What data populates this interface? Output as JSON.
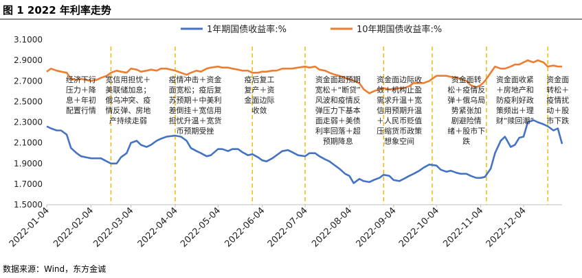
{
  "figure": {
    "title": "图 1  2022 年利率走势",
    "source": "数据来源：Wind，东方金诚"
  },
  "chart_data": {
    "type": "line",
    "title": "",
    "xlabel": "",
    "ylabel": "",
    "ylim": [
      1.5,
      3.1
    ],
    "yticks": [
      "1.5000",
      "1.7000",
      "1.9000",
      "2.1000",
      "2.3000",
      "2.5000",
      "2.7000",
      "2.9000",
      "3.1000"
    ],
    "x_range": [
      "2022-01-04",
      "2022-12-31"
    ],
    "xticks": [
      "2022-01-04",
      "2022-02-04",
      "2022-03-04",
      "2022-04-04",
      "2022-05-04",
      "2022-06-04",
      "2022-07-04",
      "2022-08-04",
      "2022-09-04",
      "2022-10-04",
      "2022-11-04",
      "2022-12-04"
    ],
    "legend_position": "top-center",
    "grid": false,
    "series": [
      {
        "name": "1年期国债收益率:%",
        "color": "#4472c4",
        "points": [
          [
            "2022-01-04",
            2.26
          ],
          [
            "2022-01-07",
            2.24
          ],
          [
            "2022-01-11",
            2.22
          ],
          [
            "2022-01-14",
            2.22
          ],
          [
            "2022-01-18",
            2.18
          ],
          [
            "2022-01-21",
            2.05
          ],
          [
            "2022-01-25",
            2.0
          ],
          [
            "2022-01-28",
            1.97
          ],
          [
            "2022-02-04",
            1.95
          ],
          [
            "2022-02-08",
            1.95
          ],
          [
            "2022-02-11",
            1.95
          ],
          [
            "2022-02-15",
            1.92
          ],
          [
            "2022-02-18",
            1.9
          ],
          [
            "2022-02-22",
            1.9
          ],
          [
            "2022-02-25",
            1.96
          ],
          [
            "2022-03-01",
            2.0
          ],
          [
            "2022-03-04",
            2.1
          ],
          [
            "2022-03-08",
            2.12
          ],
          [
            "2022-03-11",
            2.08
          ],
          [
            "2022-03-15",
            2.06
          ],
          [
            "2022-03-18",
            2.08
          ],
          [
            "2022-03-22",
            2.12
          ],
          [
            "2022-03-25",
            2.14
          ],
          [
            "2022-03-29",
            2.16
          ],
          [
            "2022-04-04",
            2.17
          ],
          [
            "2022-04-08",
            2.16
          ],
          [
            "2022-04-12",
            2.12
          ],
          [
            "2022-04-15",
            2.05
          ],
          [
            "2022-04-19",
            2.02
          ],
          [
            "2022-04-22",
            2.0
          ],
          [
            "2022-04-26",
            1.97
          ],
          [
            "2022-04-29",
            1.98
          ],
          [
            "2022-05-04",
            2.04
          ],
          [
            "2022-05-07",
            2.04
          ],
          [
            "2022-05-11",
            2.02
          ],
          [
            "2022-05-14",
            2.04
          ],
          [
            "2022-05-18",
            2.04
          ],
          [
            "2022-05-21",
            2.01
          ],
          [
            "2022-05-25",
            1.98
          ],
          [
            "2022-05-28",
            1.99
          ],
          [
            "2022-06-01",
            1.96
          ],
          [
            "2022-06-04",
            1.93
          ],
          [
            "2022-06-07",
            1.92
          ],
          [
            "2022-06-11",
            1.95
          ],
          [
            "2022-06-14",
            1.98
          ],
          [
            "2022-06-18",
            2.02
          ],
          [
            "2022-06-22",
            2.03
          ],
          [
            "2022-06-25",
            2.01
          ],
          [
            "2022-06-29",
            1.98
          ],
          [
            "2022-07-04",
            1.97
          ],
          [
            "2022-07-07",
            2.0
          ],
          [
            "2022-07-11",
            2.0
          ],
          [
            "2022-07-14",
            1.97
          ],
          [
            "2022-07-18",
            1.94
          ],
          [
            "2022-07-21",
            1.92
          ],
          [
            "2022-07-25",
            1.88
          ],
          [
            "2022-07-28",
            1.85
          ],
          [
            "2022-08-01",
            1.8
          ],
          [
            "2022-08-04",
            1.78
          ],
          [
            "2022-08-07",
            1.71
          ],
          [
            "2022-08-11",
            1.75
          ],
          [
            "2022-08-14",
            1.73
          ],
          [
            "2022-08-18",
            1.72
          ],
          [
            "2022-08-21",
            1.74
          ],
          [
            "2022-08-25",
            1.76
          ],
          [
            "2022-08-28",
            1.79
          ],
          [
            "2022-09-01",
            1.78
          ],
          [
            "2022-09-04",
            1.74
          ],
          [
            "2022-09-08",
            1.73
          ],
          [
            "2022-09-11",
            1.75
          ],
          [
            "2022-09-15",
            1.78
          ],
          [
            "2022-09-18",
            1.8
          ],
          [
            "2022-09-22",
            1.83
          ],
          [
            "2022-09-25",
            1.86
          ],
          [
            "2022-09-29",
            1.89
          ],
          [
            "2022-10-04",
            1.88
          ],
          [
            "2022-10-07",
            1.84
          ],
          [
            "2022-10-11",
            1.82
          ],
          [
            "2022-10-14",
            1.83
          ],
          [
            "2022-10-18",
            1.81
          ],
          [
            "2022-10-21",
            1.8
          ],
          [
            "2022-10-25",
            1.8
          ],
          [
            "2022-10-28",
            1.78
          ],
          [
            "2022-11-01",
            1.76
          ],
          [
            "2022-11-04",
            1.76
          ],
          [
            "2022-11-07",
            1.77
          ],
          [
            "2022-11-11",
            1.85
          ],
          [
            "2022-11-14",
            2.0
          ],
          [
            "2022-11-18",
            2.12
          ],
          [
            "2022-11-21",
            2.16
          ],
          [
            "2022-11-25",
            2.06
          ],
          [
            "2022-11-28",
            2.08
          ],
          [
            "2022-12-01",
            2.15
          ],
          [
            "2022-12-04",
            2.16
          ],
          [
            "2022-12-07",
            2.3
          ],
          [
            "2022-12-11",
            2.32
          ],
          [
            "2022-12-14",
            2.3
          ],
          [
            "2022-12-18",
            2.28
          ],
          [
            "2022-12-21",
            2.26
          ],
          [
            "2022-12-25",
            2.22
          ],
          [
            "2022-12-28",
            2.24
          ],
          [
            "2022-12-31",
            2.09
          ]
        ]
      },
      {
        "name": "10年期国债收益率:%",
        "color": "#ed7d31",
        "points": [
          [
            "2022-01-04",
            2.79
          ],
          [
            "2022-01-07",
            2.82
          ],
          [
            "2022-01-11",
            2.8
          ],
          [
            "2022-01-14",
            2.79
          ],
          [
            "2022-01-18",
            2.78
          ],
          [
            "2022-01-21",
            2.72
          ],
          [
            "2022-01-25",
            2.71
          ],
          [
            "2022-01-28",
            2.72
          ],
          [
            "2022-02-04",
            2.7
          ],
          [
            "2022-02-08",
            2.71
          ],
          [
            "2022-02-11",
            2.73
          ],
          [
            "2022-02-15",
            2.75
          ],
          [
            "2022-02-18",
            2.78
          ],
          [
            "2022-02-22",
            2.8
          ],
          [
            "2022-02-25",
            2.79
          ],
          [
            "2022-03-01",
            2.78
          ],
          [
            "2022-03-04",
            2.82
          ],
          [
            "2022-03-08",
            2.81
          ],
          [
            "2022-03-11",
            2.79
          ],
          [
            "2022-03-15",
            2.8
          ],
          [
            "2022-03-18",
            2.81
          ],
          [
            "2022-03-22",
            2.8
          ],
          [
            "2022-03-25",
            2.82
          ],
          [
            "2022-03-29",
            2.82
          ],
          [
            "2022-04-04",
            2.8
          ],
          [
            "2022-04-08",
            2.78
          ],
          [
            "2022-04-12",
            2.76
          ],
          [
            "2022-04-15",
            2.78
          ],
          [
            "2022-04-19",
            2.8
          ],
          [
            "2022-04-22",
            2.79
          ],
          [
            "2022-04-26",
            2.82
          ],
          [
            "2022-04-29",
            2.83
          ],
          [
            "2022-05-04",
            2.84
          ],
          [
            "2022-05-07",
            2.83
          ],
          [
            "2022-05-11",
            2.83
          ],
          [
            "2022-05-14",
            2.82
          ],
          [
            "2022-05-18",
            2.81
          ],
          [
            "2022-05-21",
            2.8
          ],
          [
            "2022-05-25",
            2.8
          ],
          [
            "2022-05-28",
            2.78
          ],
          [
            "2022-06-01",
            2.78
          ],
          [
            "2022-06-04",
            2.79
          ],
          [
            "2022-06-07",
            2.79
          ],
          [
            "2022-06-11",
            2.8
          ],
          [
            "2022-06-14",
            2.8
          ],
          [
            "2022-06-18",
            2.82
          ],
          [
            "2022-06-22",
            2.82
          ],
          [
            "2022-06-25",
            2.82
          ],
          [
            "2022-06-29",
            2.83
          ],
          [
            "2022-07-04",
            2.84
          ],
          [
            "2022-07-07",
            2.83
          ],
          [
            "2022-07-11",
            2.84
          ],
          [
            "2022-07-14",
            2.81
          ],
          [
            "2022-07-18",
            2.8
          ],
          [
            "2022-07-21",
            2.78
          ],
          [
            "2022-07-25",
            2.76
          ],
          [
            "2022-07-28",
            2.75
          ],
          [
            "2022-08-01",
            2.73
          ],
          [
            "2022-08-04",
            2.72
          ],
          [
            "2022-08-07",
            2.7
          ],
          [
            "2022-08-11",
            2.68
          ],
          [
            "2022-08-14",
            2.62
          ],
          [
            "2022-08-18",
            2.58
          ],
          [
            "2022-08-21",
            2.6
          ],
          [
            "2022-08-25",
            2.62
          ],
          [
            "2022-08-28",
            2.63
          ],
          [
            "2022-09-01",
            2.62
          ],
          [
            "2022-09-04",
            2.62
          ],
          [
            "2022-09-08",
            2.63
          ],
          [
            "2022-09-11",
            2.63
          ],
          [
            "2022-09-15",
            2.65
          ],
          [
            "2022-09-18",
            2.68
          ],
          [
            "2022-09-22",
            2.68
          ],
          [
            "2022-09-25",
            2.68
          ],
          [
            "2022-09-29",
            2.7
          ],
          [
            "2022-10-04",
            2.75
          ],
          [
            "2022-10-07",
            2.75
          ],
          [
            "2022-10-11",
            2.75
          ],
          [
            "2022-10-14",
            2.74
          ],
          [
            "2022-10-18",
            2.73
          ],
          [
            "2022-10-21",
            2.72
          ],
          [
            "2022-10-25",
            2.7
          ],
          [
            "2022-10-28",
            2.66
          ],
          [
            "2022-11-01",
            2.64
          ],
          [
            "2022-11-04",
            2.66
          ],
          [
            "2022-11-07",
            2.7
          ],
          [
            "2022-11-11",
            2.78
          ],
          [
            "2022-11-14",
            2.84
          ],
          [
            "2022-11-18",
            2.82
          ],
          [
            "2022-11-21",
            2.82
          ],
          [
            "2022-11-25",
            2.84
          ],
          [
            "2022-11-28",
            2.86
          ],
          [
            "2022-12-01",
            2.86
          ],
          [
            "2022-12-04",
            2.88
          ],
          [
            "2022-12-07",
            2.9
          ],
          [
            "2022-12-11",
            2.88
          ],
          [
            "2022-12-14",
            2.9
          ],
          [
            "2022-12-18",
            2.88
          ],
          [
            "2022-12-21",
            2.84
          ],
          [
            "2022-12-25",
            2.85
          ],
          [
            "2022-12-28",
            2.84
          ],
          [
            "2022-12-31",
            2.84
          ]
        ]
      }
    ],
    "events": [
      {
        "date": "2022-01-28",
        "lines": [
          "经济下行",
          "压力＋降",
          "息＋年初",
          "配置行情"
        ]
      },
      {
        "date": "2022-03-02",
        "lines": [
          "宽信用担忧＋",
          "美联储加息；",
          "俄乌冲突、疫",
          "情反弹、房地",
          "产持续走弱"
        ]
      },
      {
        "date": "2022-04-18",
        "lines": [
          "疫情冲击＋资金",
          "面宽松；疫后复",
          "苏预期＋中美利",
          "差倒挂＋宽信用",
          "担忧升温＋宽货",
          "币预期受挫"
        ]
      },
      {
        "date": "2022-06-02",
        "lines": [
          "疫后复工",
          "复产＋资",
          "金面边际",
          "收敛"
        ]
      },
      {
        "date": "2022-07-27",
        "lines": [
          "资金面超预期",
          "宽松＋“断贷”",
          "风波和疫情反",
          "弹压力下基本",
          "面走弱＋美债",
          "利率回落＋超",
          "预期降息"
        ]
      },
      {
        "date": "2022-09-08",
        "lines": [
          "资金面边际收",
          "敛＋机构止盈",
          "需求升温＋宽",
          "信用预期升温",
          "＋人民币贬值",
          "压缩货币政策",
          "想象空间"
        ]
      },
      {
        "date": "2022-10-25",
        "lines": [
          "资金面转",
          "松＋疫情反",
          "弹＋俄乌局",
          "势紧张加",
          "剧避险情",
          "绪＋股市下",
          "跌"
        ]
      },
      {
        "date": "2022-11-28",
        "lines": [
          "资金面收紧",
          "＋房地产和",
          "防疫利好政",
          "策频出＋理",
          "财“赎回潮”"
        ]
      },
      {
        "date": "2022-12-28",
        "lines": [
          "资金面",
          "转松＋",
          "疫情扰",
          "动＋股",
          "市下跌"
        ]
      }
    ]
  }
}
